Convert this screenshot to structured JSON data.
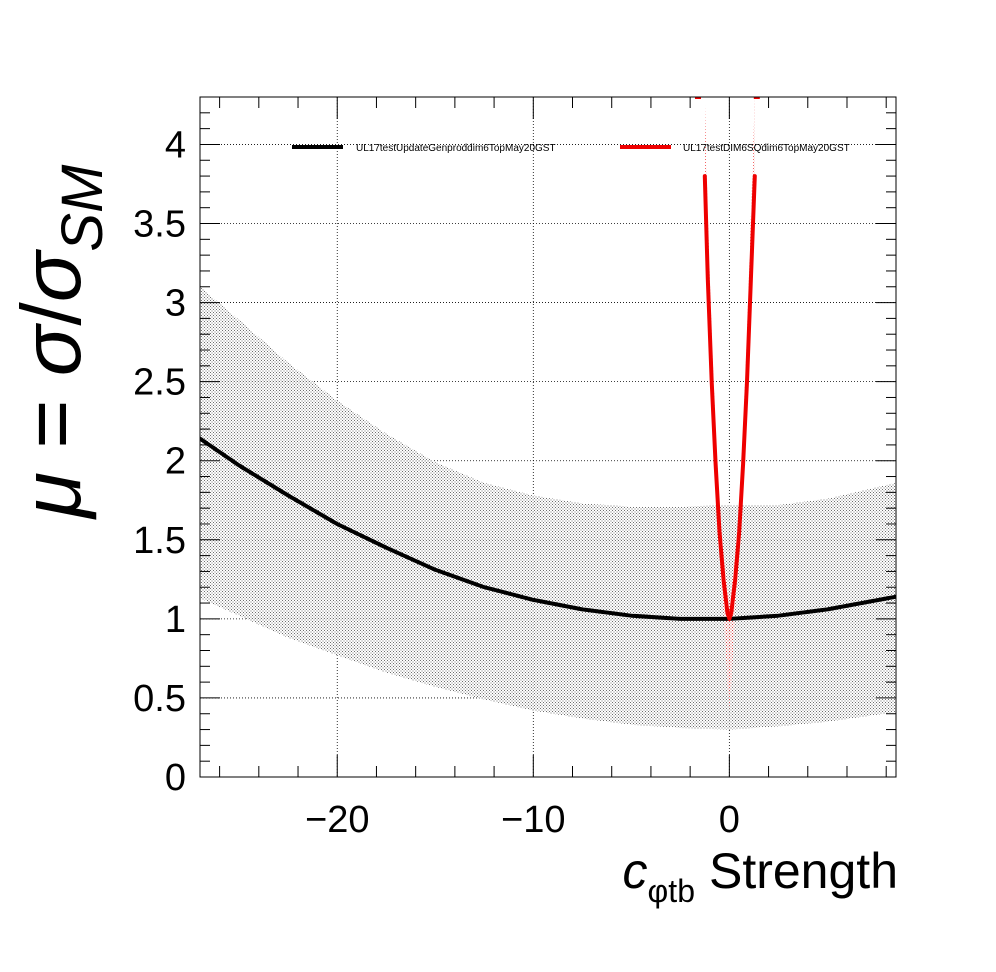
{
  "chart_data": {
    "type": "line",
    "title": "",
    "xlabel": {
      "symbol": "c",
      "subscript": "φtb",
      "suffix": "Strength"
    },
    "ylabel": {
      "mu": "μ",
      "eq": " = ",
      "sigma": "σ",
      "slash": "/",
      "sub": "SM"
    },
    "xlim": [
      -27,
      8.5
    ],
    "ylim": [
      0,
      4.3
    ],
    "x_ticks": [
      -20,
      -10,
      0
    ],
    "x_tick_labels": [
      "−20",
      "−10",
      "0"
    ],
    "y_ticks": [
      0,
      0.5,
      1,
      1.5,
      2,
      2.5,
      3,
      3.5,
      4
    ],
    "y_tick_labels": [
      "0",
      "0.5",
      "1",
      "1.5",
      "2",
      "2.5",
      "3",
      "3.5",
      "4"
    ],
    "grid": true,
    "legend_position": "top",
    "colors": {
      "black_series": "#000000",
      "red_series": "#ee0000",
      "black_band": "#bdbdbd",
      "red_band": "#f2a0a0"
    },
    "series": [
      {
        "name": "UL17testUpdateGenproddim6TopMay20GST",
        "color": "#000000",
        "x": [
          -27,
          -25,
          -22.5,
          -20,
          -17.5,
          -15,
          -12.5,
          -10,
          -7.5,
          -5,
          -2.5,
          0,
          2.5,
          5,
          8.5
        ],
        "y": [
          2.14,
          1.97,
          1.78,
          1.6,
          1.45,
          1.31,
          1.2,
          1.12,
          1.06,
          1.02,
          1.0,
          1.0,
          1.02,
          1.06,
          1.14
        ],
        "band_low": [
          1.13,
          1.02,
          0.88,
          0.77,
          0.66,
          0.57,
          0.49,
          0.42,
          0.37,
          0.33,
          0.31,
          0.3,
          0.32,
          0.35,
          0.41
        ],
        "band_high": [
          3.1,
          2.89,
          2.62,
          2.38,
          2.17,
          1.99,
          1.86,
          1.78,
          1.73,
          1.71,
          1.71,
          1.72,
          1.72,
          1.76,
          1.86
        ]
      },
      {
        "name": "UL17testDIM6SQdim6TopMay20GST",
        "color": "#ee0000",
        "x": [
          -1.25,
          -1.1,
          -0.9,
          -0.7,
          -0.5,
          -0.3,
          -0.1,
          0,
          0.1,
          0.3,
          0.5,
          0.7,
          0.9,
          1.1,
          1.3
        ],
        "y": [
          3.8,
          3.15,
          2.5,
          1.98,
          1.55,
          1.25,
          1.04,
          1.0,
          1.04,
          1.25,
          1.55,
          1.98,
          2.5,
          3.15,
          3.8
        ],
        "band_low": [
          3.5,
          2.9,
          2.3,
          1.82,
          1.4,
          1.05,
          0.6,
          0.42,
          0.6,
          1.05,
          1.4,
          1.82,
          2.3,
          2.9,
          3.5
        ],
        "band_high": [
          4.3,
          3.55,
          2.8,
          2.2,
          1.72,
          1.42,
          1.2,
          1.12,
          1.2,
          1.42,
          1.72,
          2.2,
          2.8,
          3.55,
          4.3
        ]
      }
    ],
    "outlier_points": [
      {
        "x": -1.6,
        "y": 4.3
      },
      {
        "x": 1.4,
        "y": 4.3
      }
    ]
  }
}
